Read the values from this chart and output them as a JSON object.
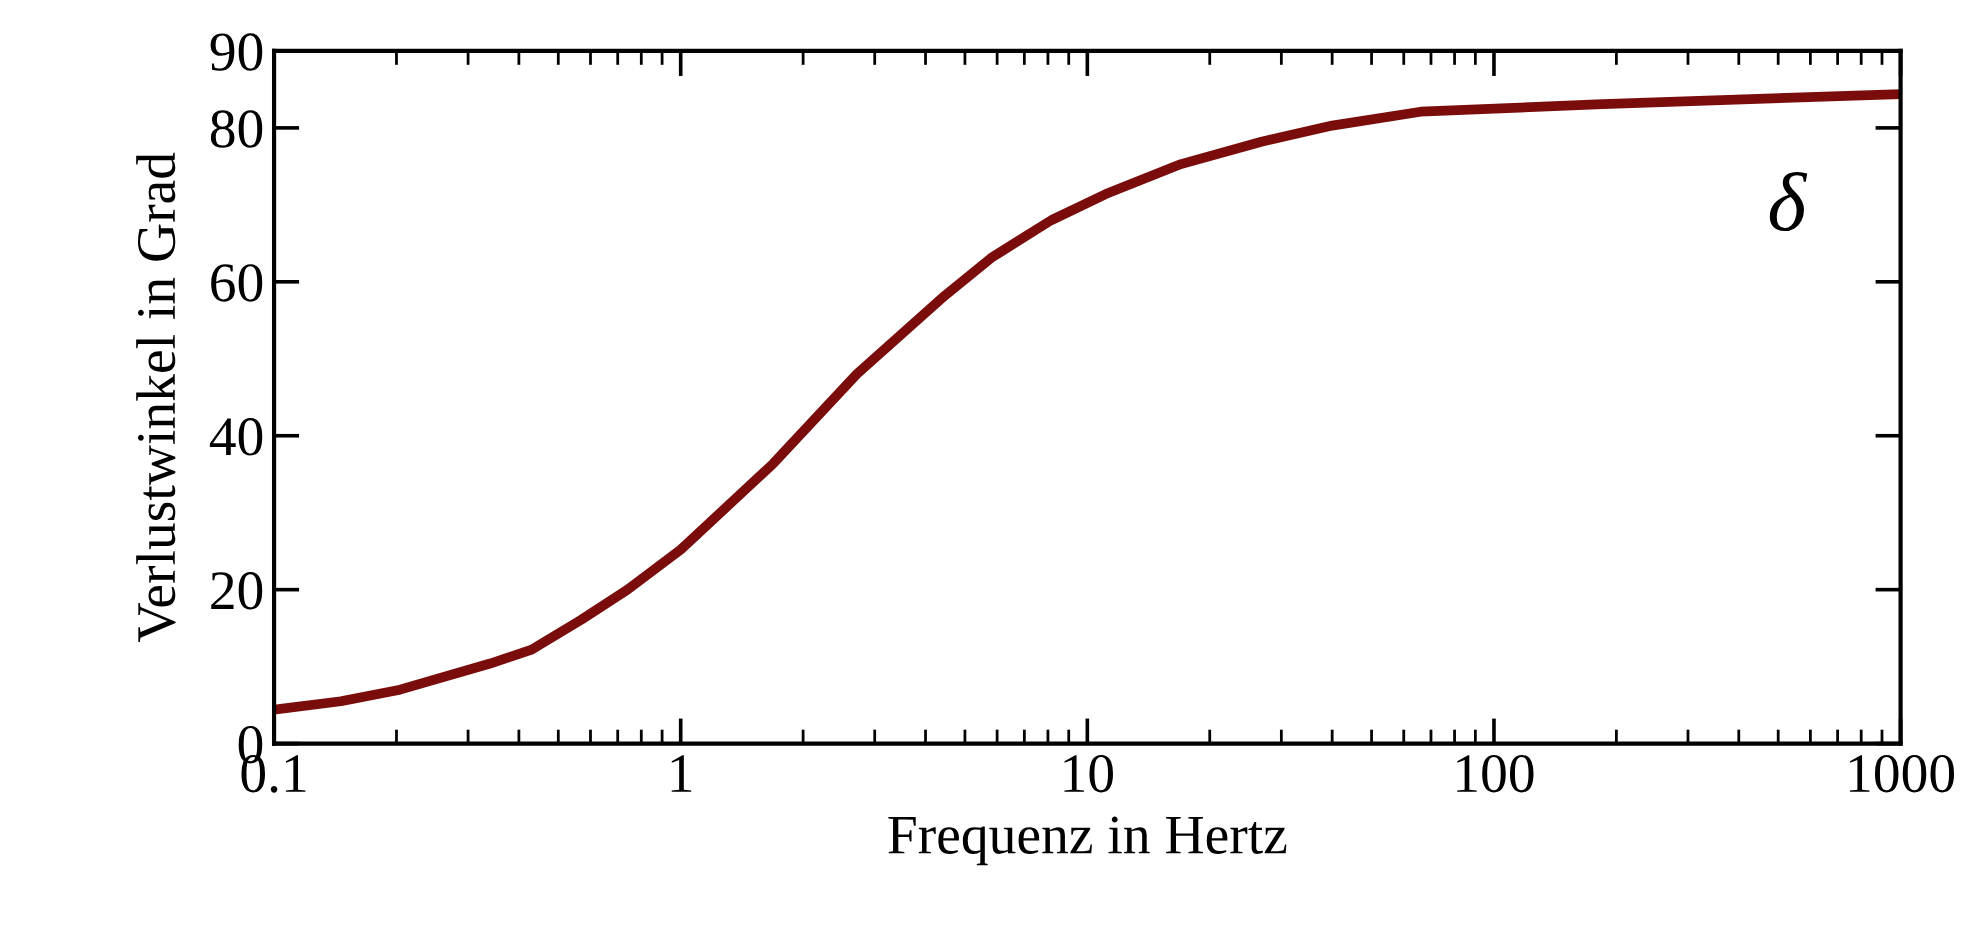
{
  "chart_data": {
    "type": "line",
    "xlabel": "Frequenz in Hertz",
    "ylabel": "Verlustwinkel in Grad",
    "log": "x",
    "xlim": [
      0.1,
      1000
    ],
    "ylim": [
      0,
      90
    ],
    "xticks": [
      0.1,
      1,
      10,
      100,
      1000
    ],
    "yticks": [
      0,
      20,
      40,
      60,
      80,
      90
    ],
    "grid": false,
    "legend": false,
    "series": [
      {
        "name": "δ",
        "color": "#7a0c0c",
        "x": [
          0.1,
          0.146,
          0.204,
          0.34,
          0.43,
          0.57,
          0.74,
          1,
          1.69,
          2.71,
          4.46,
          5.8,
          8.15,
          11.1,
          17,
          26.8,
          40,
          66,
          185,
          1000
        ],
        "values": [
          4.4,
          5.5,
          7.0,
          10.4,
          12.2,
          16.1,
          20,
          25.2,
          36.4,
          48,
          58.2,
          63.1,
          68,
          71.4,
          75.3,
          78.2,
          80.3,
          82.1,
          83.1,
          84.4
        ]
      }
    ]
  }
}
